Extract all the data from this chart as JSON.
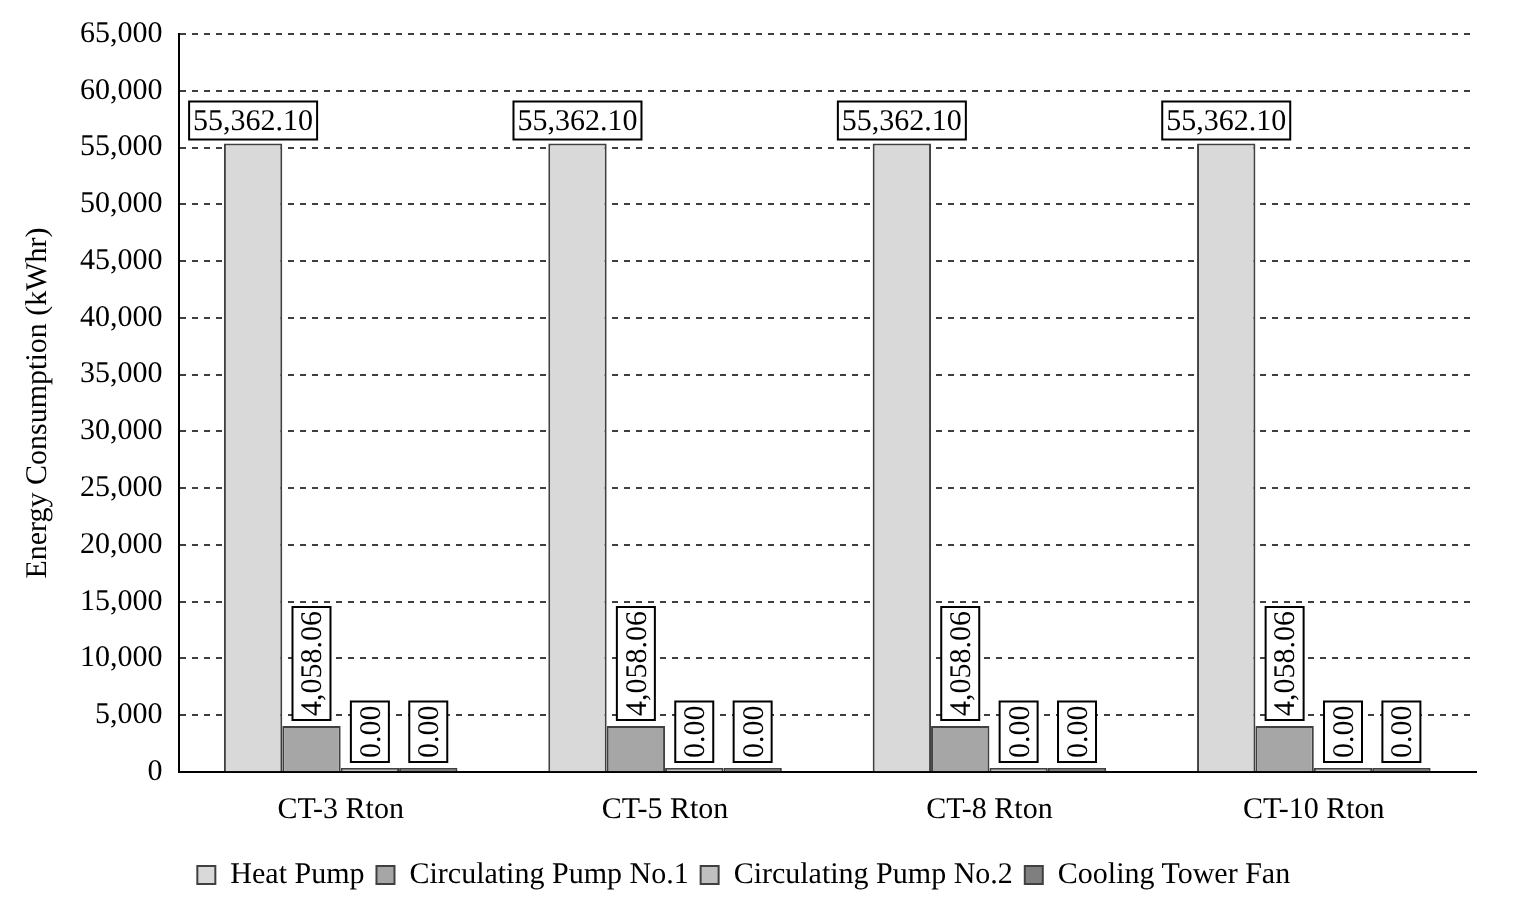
{
  "chart_data": {
    "type": "bar",
    "ylabel": "Energy Consumption (kWhr)",
    "categories": [
      "CT-3 Rton",
      "CT-5 Rton",
      "CT-8 Rton",
      "CT-10 Rton"
    ],
    "series": [
      {
        "name": "Heat Pump",
        "color": "#d9d9d9",
        "values": [
          55362.1,
          55362.1,
          55362.1,
          55362.1
        ],
        "value_labels": [
          "55,362.10",
          "55,362.10",
          "55,362.10",
          "55,362.10"
        ]
      },
      {
        "name": "Circulating Pump No.1",
        "color": "#a6a6a6",
        "values": [
          4058.06,
          4058.06,
          4058.06,
          4058.06
        ],
        "value_labels": [
          "4,058.06",
          "4,058.06",
          "4,058.06",
          "4,058.06"
        ]
      },
      {
        "name": "Circulating Pump No.2",
        "color": "#bfbfbf",
        "values": [
          0,
          0,
          0,
          0
        ],
        "value_labels": [
          "0.00",
          "0.00",
          "0.00",
          "0.00"
        ]
      },
      {
        "name": "Cooling Tower Fan",
        "color": "#7f7f7f",
        "values": [
          0,
          0,
          0,
          0
        ],
        "value_labels": [
          "0.00",
          "0.00",
          "0.00",
          "0.00"
        ]
      }
    ],
    "ylim": [
      0,
      65000
    ],
    "yticks": [
      0,
      {
        "value": 5000,
        "label": "5,000"
      },
      {
        "value": 10000,
        "label": "10,000"
      },
      {
        "value": 15000,
        "label": "15,000"
      },
      {
        "value": 20000,
        "label": "20,000"
      },
      {
        "value": 25000,
        "label": "25,000"
      },
      {
        "value": 30000,
        "label": "30,000"
      },
      {
        "value": 35000,
        "label": "35,000"
      },
      {
        "value": 40000,
        "label": "40,000"
      },
      {
        "value": 45000,
        "label": "45,000"
      },
      {
        "value": 50000,
        "label": "50,000"
      },
      {
        "value": 55000,
        "label": "55,000"
      },
      {
        "value": 60000,
        "label": "60,000"
      },
      {
        "value": 65000,
        "label": "65,000"
      }
    ],
    "grid": "y",
    "legend": "bottom"
  }
}
